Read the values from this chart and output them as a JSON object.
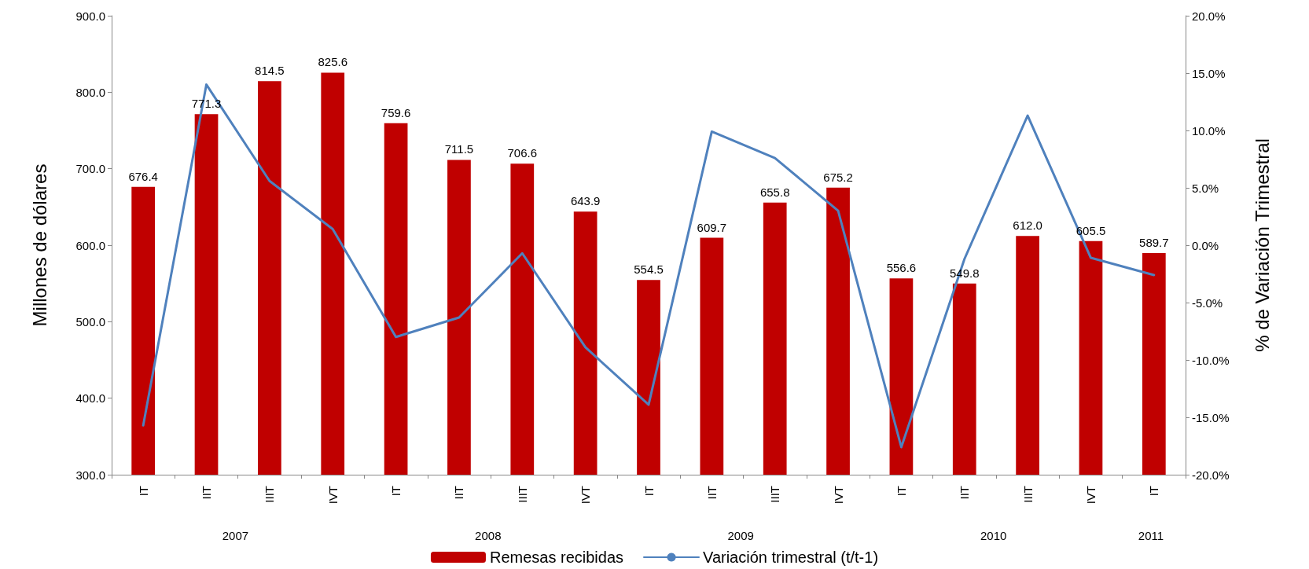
{
  "chart_data": {
    "type": "bar",
    "ylabel": "Millones de dólares",
    "y2label": "% de Variación Trimestral",
    "categories": [
      "IT",
      "IIT",
      "IIIT",
      "IVT",
      "IT",
      "IIT",
      "IIIT",
      "IVT",
      "IT",
      "IIT",
      "IIIT",
      "IVT",
      "IT",
      "IIT",
      "IIIT",
      "IVT",
      "IT"
    ],
    "series": [
      {
        "name": "Remesas recibidas",
        "color": "#c00000",
        "values": [
          676.4,
          771.3,
          814.5,
          825.6,
          759.6,
          711.5,
          706.6,
          643.9,
          554.5,
          609.7,
          655.8,
          675.2,
          556.6,
          549.8,
          612.0,
          605.5,
          589.7
        ],
        "value_labels": [
          "676.4",
          "771.3",
          "814.5",
          "825.6",
          "759.6",
          "711.5",
          "706.6",
          "643.9",
          "554.5",
          "609.7",
          "655.8",
          "675.2",
          "556.6",
          "549.8",
          "612.0",
          "605.5",
          "589.7"
        ]
      },
      {
        "name": "Variación trimestral (t/t-1)",
        "type": "line",
        "axis": "y2",
        "color": "#4f81bd",
        "values": [
          -15.7,
          14.0,
          5.6,
          1.4,
          -8.0,
          -6.3,
          -0.7,
          -8.9,
          -13.9,
          9.9,
          7.6,
          3.0,
          -17.6,
          -1.2,
          11.3,
          -1.1,
          -2.6
        ]
      }
    ],
    "ylim": [
      300,
      900
    ],
    "yticks": [
      {
        "value": 300,
        "label": "300.0"
      },
      {
        "value": 400,
        "label": "400.0"
      },
      {
        "value": 500,
        "label": "500.0"
      },
      {
        "value": 600,
        "label": "600.0"
      },
      {
        "value": 700,
        "label": "700.0"
      },
      {
        "value": 800,
        "label": "800.0"
      },
      {
        "value": 900,
        "label": "900.0"
      }
    ],
    "y2lim": [
      -20,
      20
    ],
    "y2ticks": [
      {
        "value": -20,
        "label": "-20.0%"
      },
      {
        "value": -15,
        "label": "-15.0%"
      },
      {
        "value": -10,
        "label": "-10.0%"
      },
      {
        "value": -5,
        "label": "-5.0%"
      },
      {
        "value": 0,
        "label": "0.0%"
      },
      {
        "value": 5,
        "label": "5.0%"
      },
      {
        "value": 10,
        "label": "10.0%"
      },
      {
        "value": 15,
        "label": "15.0%"
      },
      {
        "value": 20,
        "label": "20.0%"
      }
    ],
    "annotations": [
      "2007",
      "2008",
      "2009",
      "2010",
      "2011"
    ],
    "grid": false,
    "legend": "bottom",
    "marker": "none",
    "line_style": "solid"
  }
}
